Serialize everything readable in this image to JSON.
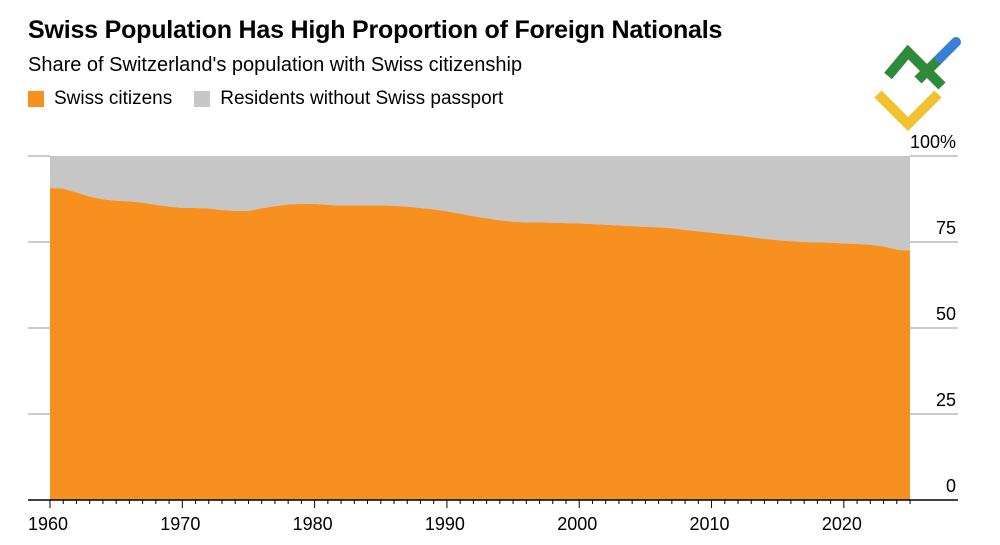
{
  "header": {
    "title": "Swiss Population Has High Proportion of Foreign Nationals",
    "subtitle": "Share of Switzerland's population with Swiss citizenship"
  },
  "legend": [
    {
      "label": "Swiss citizens",
      "color": "#f7901e"
    },
    {
      "label": "Residents without Swiss passport",
      "color": "#c6c6c6"
    }
  ],
  "chart_data": {
    "type": "area",
    "stacked": true,
    "x": [
      1960,
      1961,
      1962,
      1963,
      1964,
      1965,
      1966,
      1967,
      1968,
      1969,
      1970,
      1971,
      1972,
      1973,
      1974,
      1975,
      1976,
      1977,
      1978,
      1979,
      1980,
      1981,
      1982,
      1983,
      1984,
      1985,
      1986,
      1987,
      1988,
      1989,
      1990,
      1991,
      1992,
      1993,
      1994,
      1995,
      1996,
      1997,
      1998,
      1999,
      2000,
      2001,
      2002,
      2003,
      2004,
      2005,
      2006,
      2007,
      2008,
      2009,
      2010,
      2011,
      2012,
      2013,
      2014,
      2015,
      2016,
      2017,
      2018,
      2019,
      2020,
      2021,
      2022,
      2023,
      2024,
      2025
    ],
    "series": [
      {
        "name": "Swiss citizens",
        "color": "#f7901e",
        "values": [
          90.7,
          90.5,
          89.4,
          88.2,
          87.4,
          87.0,
          86.8,
          86.4,
          85.8,
          85.3,
          84.9,
          84.9,
          84.7,
          84.3,
          84.0,
          84.0,
          84.8,
          85.4,
          85.9,
          86.1,
          86.1,
          85.8,
          85.6,
          85.6,
          85.6,
          85.6,
          85.5,
          85.3,
          84.9,
          84.5,
          83.9,
          83.2,
          82.5,
          81.9,
          81.3,
          80.9,
          80.7,
          80.7,
          80.6,
          80.5,
          80.4,
          80.2,
          80.0,
          79.8,
          79.6,
          79.4,
          79.3,
          79.0,
          78.5,
          78.1,
          77.7,
          77.3,
          76.9,
          76.4,
          75.9,
          75.5,
          75.2,
          75.0,
          74.9,
          74.8,
          74.6,
          74.4,
          74.2,
          73.7,
          72.8,
          72.5
        ]
      },
      {
        "name": "Residents without Swiss passport",
        "color": "#c6c6c6",
        "fill_to": 100
      }
    ],
    "xlim": [
      1960,
      2025
    ],
    "ylim": [
      0,
      100
    ],
    "x_ticks": [
      "1960",
      "1970",
      "1980",
      "1990",
      "2000",
      "2010",
      "2020"
    ],
    "y_ticks": [
      {
        "value": 100,
        "label": "100%"
      },
      {
        "value": 75,
        "label": "75"
      },
      {
        "value": 50,
        "label": "50"
      },
      {
        "value": 25,
        "label": "25"
      },
      {
        "value": 0,
        "label": "0"
      }
    ],
    "grid": true,
    "y_axis_side": "right",
    "legend_position": "top-left"
  },
  "logo": {
    "icon": "brand-logo-icon",
    "colors": [
      "#2e8b3a",
      "#f2c12e",
      "#3a7fd5"
    ]
  }
}
